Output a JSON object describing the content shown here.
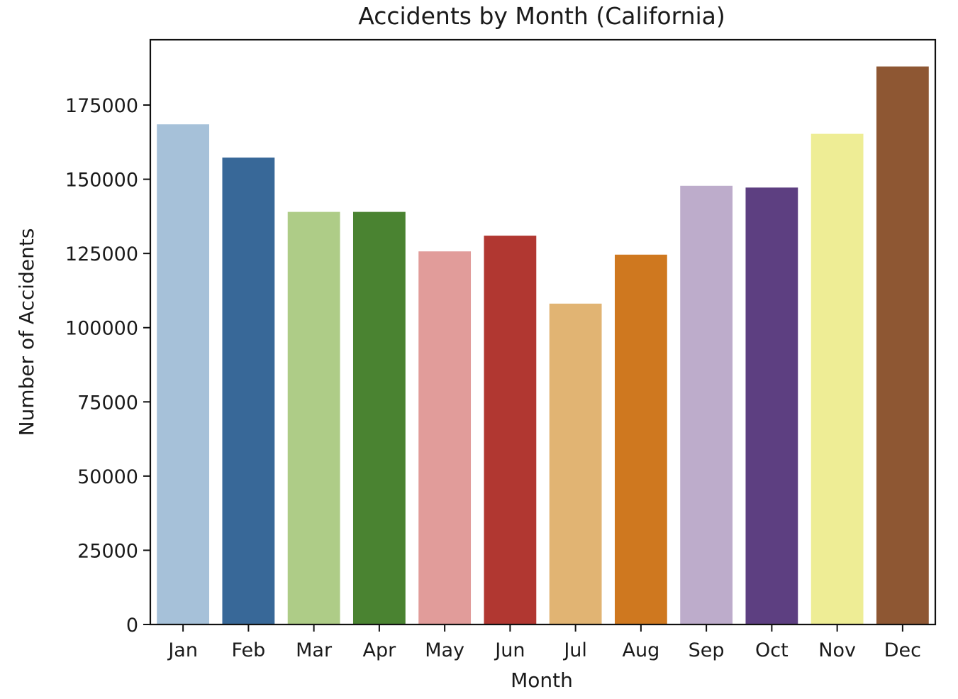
{
  "chart_data": {
    "type": "bar",
    "title": "Accidents by Month (California)",
    "xlabel": "Month",
    "ylabel": "Number of Accidents",
    "categories": [
      "Jan",
      "Feb",
      "Mar",
      "Apr",
      "May",
      "Jun",
      "Jul",
      "Aug",
      "Sep",
      "Oct",
      "Nov",
      "Dec"
    ],
    "values": [
      168500,
      157300,
      139000,
      139000,
      125700,
      131000,
      108100,
      124600,
      147800,
      147200,
      165300,
      188000
    ],
    "colors": [
      "#a6c1d9",
      "#386898",
      "#aecc87",
      "#4a8331",
      "#e19c9a",
      "#b13731",
      "#e1b473",
      "#cf781f",
      "#bdaccb",
      "#5d3f81",
      "#eeed95",
      "#8e5733"
    ],
    "ylim": [
      0,
      197000
    ],
    "yticks": [
      0,
      25000,
      50000,
      75000,
      100000,
      125000,
      150000,
      175000
    ],
    "grid": false,
    "legend": "none"
  }
}
